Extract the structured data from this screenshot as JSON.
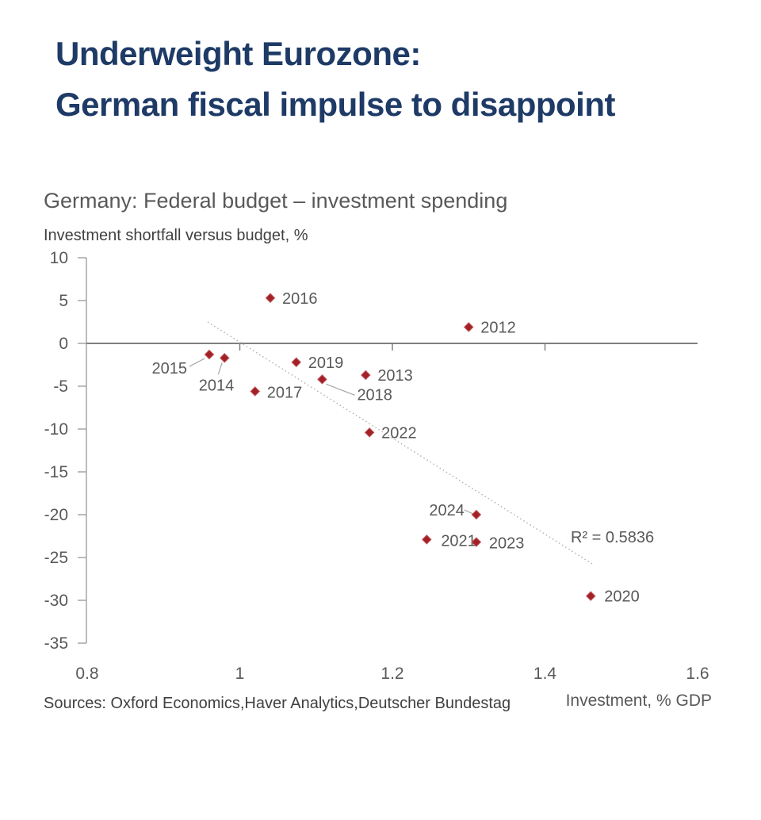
{
  "title": {
    "line1": "Underweight Eurozone:",
    "line2": "German fiscal impulse to disappoint"
  },
  "footer": {
    "sources": "Sources: Oxford Economics,Haver Analytics,Deutscher Bundestag"
  },
  "colors": {
    "title_navy": "#1e3a66",
    "marker_red": "#a32026",
    "text_gray": "#595959",
    "axis_gray": "#a6a6a6",
    "zero_line_gray": "#808080"
  },
  "chart_data": {
    "type": "scatter",
    "title": "Germany: Federal budget – investment spending",
    "ylabel": "Investment shortfall versus budget, %",
    "xlabel": "Investment, % GDP",
    "xlim": [
      0.8,
      1.6
    ],
    "ylim": [
      -35,
      10
    ],
    "grid": false,
    "x_ticks": [
      {
        "value": 0.8,
        "label": "0.8",
        "tick": false
      },
      {
        "value": 1.0,
        "label": "1",
        "tick": true
      },
      {
        "value": 1.2,
        "label": "1.2",
        "tick": true
      },
      {
        "value": 1.4,
        "label": "1.4",
        "tick": true
      },
      {
        "value": 1.6,
        "label": "1.6",
        "tick": false
      }
    ],
    "y_ticks": [
      10,
      5,
      0,
      -5,
      -10,
      -15,
      -20,
      -25,
      -30,
      -35
    ],
    "marker": {
      "shape": "diamond",
      "color": "#a32026",
      "edge": "#c05a5e"
    },
    "points": [
      {
        "year": "2012",
        "x": 1.3,
        "y": 1.9
      },
      {
        "year": "2013",
        "x": 1.165,
        "y": -3.7
      },
      {
        "year": "2014",
        "x": 0.98,
        "y": -1.7
      },
      {
        "year": "2015",
        "x": 0.96,
        "y": -1.3
      },
      {
        "year": "2016",
        "x": 1.04,
        "y": 5.3
      },
      {
        "year": "2017",
        "x": 1.02,
        "y": -5.6
      },
      {
        "year": "2018",
        "x": 1.108,
        "y": -4.2
      },
      {
        "year": "2019",
        "x": 1.074,
        "y": -2.2
      },
      {
        "year": "2020",
        "x": 1.46,
        "y": -29.5
      },
      {
        "year": "2021",
        "x": 1.245,
        "y": -22.9
      },
      {
        "year": "2022",
        "x": 1.17,
        "y": -10.4
      },
      {
        "year": "2023",
        "x": 1.31,
        "y": -23.2
      },
      {
        "year": "2024",
        "x": 1.31,
        "y": -20.0
      }
    ],
    "trendline": {
      "style": "dotted",
      "x1": 0.958,
      "y1": 2.5,
      "x2": 1.463,
      "y2": -25.8,
      "r_squared": 0.5836,
      "r_squared_label": "R² = 0.5836"
    }
  }
}
